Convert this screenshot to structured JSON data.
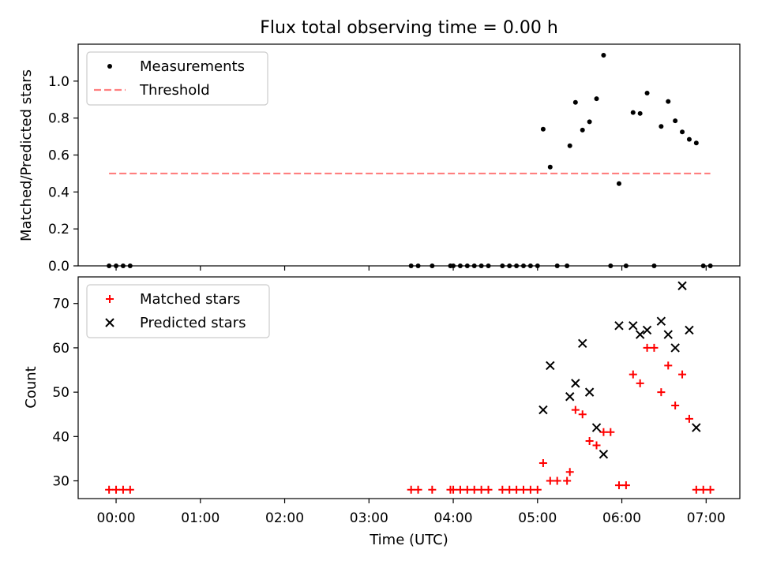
{
  "chart_data": [
    {
      "type": "scatter",
      "title": "Flux total observing time = 0.00 h",
      "xlabel": "",
      "ylabel": "Matched/Predicted stars",
      "xlim": [
        "-0.45",
        "7.4"
      ],
      "ylim": [
        0.0,
        1.2
      ],
      "yticks": [
        0.0,
        0.2,
        0.4,
        0.6,
        0.8,
        1.0
      ],
      "ytick_labels": [
        "0.0",
        "0.2",
        "0.4",
        "0.6",
        "0.8",
        "1.0"
      ],
      "legend_position": "upper-left",
      "series": [
        {
          "name": "Measurements",
          "marker": "dot",
          "color": "#000000",
          "points": [
            {
              "x": "23:55",
              "y": 0.0
            },
            {
              "x": "00:00",
              "y": 0.0
            },
            {
              "x": "00:05",
              "y": 0.0
            },
            {
              "x": "00:10",
              "y": 0.0
            },
            {
              "x": "03:30",
              "y": 0.0
            },
            {
              "x": "03:35",
              "y": 0.0
            },
            {
              "x": "03:45",
              "y": 0.0
            },
            {
              "x": "03:58",
              "y": 0.0
            },
            {
              "x": "04:00",
              "y": 0.0
            },
            {
              "x": "04:05",
              "y": 0.0
            },
            {
              "x": "04:10",
              "y": 0.0
            },
            {
              "x": "04:15",
              "y": 0.0
            },
            {
              "x": "04:20",
              "y": 0.0
            },
            {
              "x": "04:25",
              "y": 0.0
            },
            {
              "x": "04:35",
              "y": 0.0
            },
            {
              "x": "04:40",
              "y": 0.0
            },
            {
              "x": "04:45",
              "y": 0.0
            },
            {
              "x": "04:50",
              "y": 0.0
            },
            {
              "x": "04:55",
              "y": 0.0
            },
            {
              "x": "05:00",
              "y": 0.0
            },
            {
              "x": "05:04",
              "y": 0.74
            },
            {
              "x": "05:09",
              "y": 0.535
            },
            {
              "x": "05:14",
              "y": 0.0
            },
            {
              "x": "05:21",
              "y": 0.0
            },
            {
              "x": "05:23",
              "y": 0.65
            },
            {
              "x": "05:27",
              "y": 0.885
            },
            {
              "x": "05:32",
              "y": 0.735
            },
            {
              "x": "05:37",
              "y": 0.78
            },
            {
              "x": "05:42",
              "y": 0.905
            },
            {
              "x": "05:47",
              "y": 1.14
            },
            {
              "x": "05:52",
              "y": 0.0
            },
            {
              "x": "05:58",
              "y": 0.445
            },
            {
              "x": "06:03",
              "y": 0.0
            },
            {
              "x": "06:08",
              "y": 0.83
            },
            {
              "x": "06:13",
              "y": 0.825
            },
            {
              "x": "06:18",
              "y": 0.935
            },
            {
              "x": "06:23",
              "y": 0.0
            },
            {
              "x": "06:28",
              "y": 0.755
            },
            {
              "x": "06:33",
              "y": 0.89
            },
            {
              "x": "06:38",
              "y": 0.785
            },
            {
              "x": "06:43",
              "y": 0.725
            },
            {
              "x": "06:48",
              "y": 0.685
            },
            {
              "x": "06:53",
              "y": 0.665
            },
            {
              "x": "06:58",
              "y": 0.0
            },
            {
              "x": "07:03",
              "y": 0.0
            }
          ]
        },
        {
          "name": "Threshold",
          "marker": "dashed-line",
          "color": "#ff7f7f",
          "points": [
            {
              "x": "23:55",
              "y": 0.5
            },
            {
              "x": "07:03",
              "y": 0.5
            }
          ]
        }
      ]
    },
    {
      "type": "scatter",
      "title": "",
      "xlabel": "Time (UTC)",
      "ylabel": "Count",
      "xlim": [
        "-0.45",
        "7.4"
      ],
      "ylim": [
        26,
        76
      ],
      "xticks": [
        "00:00",
        "01:00",
        "02:00",
        "03:00",
        "04:00",
        "05:00",
        "06:00",
        "07:00"
      ],
      "yticks": [
        30,
        40,
        50,
        60,
        70
      ],
      "ytick_labels": [
        "30",
        "40",
        "50",
        "60",
        "70"
      ],
      "legend_position": "upper-left",
      "series": [
        {
          "name": "Matched stars",
          "marker": "plus",
          "color": "#ff0000",
          "points": [
            {
              "x": "23:55",
              "y": 28
            },
            {
              "x": "00:00",
              "y": 28
            },
            {
              "x": "00:05",
              "y": 28
            },
            {
              "x": "00:10",
              "y": 28
            },
            {
              "x": "03:30",
              "y": 28
            },
            {
              "x": "03:35",
              "y": 28
            },
            {
              "x": "03:45",
              "y": 28
            },
            {
              "x": "03:58",
              "y": 28
            },
            {
              "x": "04:00",
              "y": 28
            },
            {
              "x": "04:05",
              "y": 28
            },
            {
              "x": "04:10",
              "y": 28
            },
            {
              "x": "04:15",
              "y": 28
            },
            {
              "x": "04:20",
              "y": 28
            },
            {
              "x": "04:25",
              "y": 28
            },
            {
              "x": "04:35",
              "y": 28
            },
            {
              "x": "04:40",
              "y": 28
            },
            {
              "x": "04:45",
              "y": 28
            },
            {
              "x": "04:50",
              "y": 28
            },
            {
              "x": "04:55",
              "y": 28
            },
            {
              "x": "05:00",
              "y": 28
            },
            {
              "x": "05:04",
              "y": 34
            },
            {
              "x": "05:09",
              "y": 30
            },
            {
              "x": "05:14",
              "y": 30
            },
            {
              "x": "05:21",
              "y": 30
            },
            {
              "x": "05:23",
              "y": 32
            },
            {
              "x": "05:27",
              "y": 46
            },
            {
              "x": "05:32",
              "y": 45
            },
            {
              "x": "05:37",
              "y": 39
            },
            {
              "x": "05:42",
              "y": 38
            },
            {
              "x": "05:47",
              "y": 41
            },
            {
              "x": "05:52",
              "y": 41
            },
            {
              "x": "05:58",
              "y": 29
            },
            {
              "x": "06:03",
              "y": 29
            },
            {
              "x": "06:08",
              "y": 54
            },
            {
              "x": "06:13",
              "y": 52
            },
            {
              "x": "06:18",
              "y": 60
            },
            {
              "x": "06:23",
              "y": 60
            },
            {
              "x": "06:28",
              "y": 50
            },
            {
              "x": "06:33",
              "y": 56
            },
            {
              "x": "06:38",
              "y": 47
            },
            {
              "x": "06:43",
              "y": 54
            },
            {
              "x": "06:48",
              "y": 44
            },
            {
              "x": "06:53",
              "y": 28
            },
            {
              "x": "06:58",
              "y": 28
            },
            {
              "x": "07:03",
              "y": 28
            }
          ]
        },
        {
          "name": "Predicted stars",
          "marker": "x",
          "color": "#000000",
          "points": [
            {
              "x": "05:04",
              "y": 46
            },
            {
              "x": "05:09",
              "y": 56
            },
            {
              "x": "05:23",
              "y": 49
            },
            {
              "x": "05:27",
              "y": 52
            },
            {
              "x": "05:32",
              "y": 61
            },
            {
              "x": "05:37",
              "y": 50
            },
            {
              "x": "05:42",
              "y": 42
            },
            {
              "x": "05:47",
              "y": 36
            },
            {
              "x": "05:58",
              "y": 65
            },
            {
              "x": "06:08",
              "y": 65
            },
            {
              "x": "06:13",
              "y": 63
            },
            {
              "x": "06:18",
              "y": 64
            },
            {
              "x": "06:28",
              "y": 66
            },
            {
              "x": "06:33",
              "y": 63
            },
            {
              "x": "06:38",
              "y": 60
            },
            {
              "x": "06:43",
              "y": 74
            },
            {
              "x": "06:48",
              "y": 64
            },
            {
              "x": "06:53",
              "y": 42
            }
          ]
        }
      ]
    }
  ]
}
